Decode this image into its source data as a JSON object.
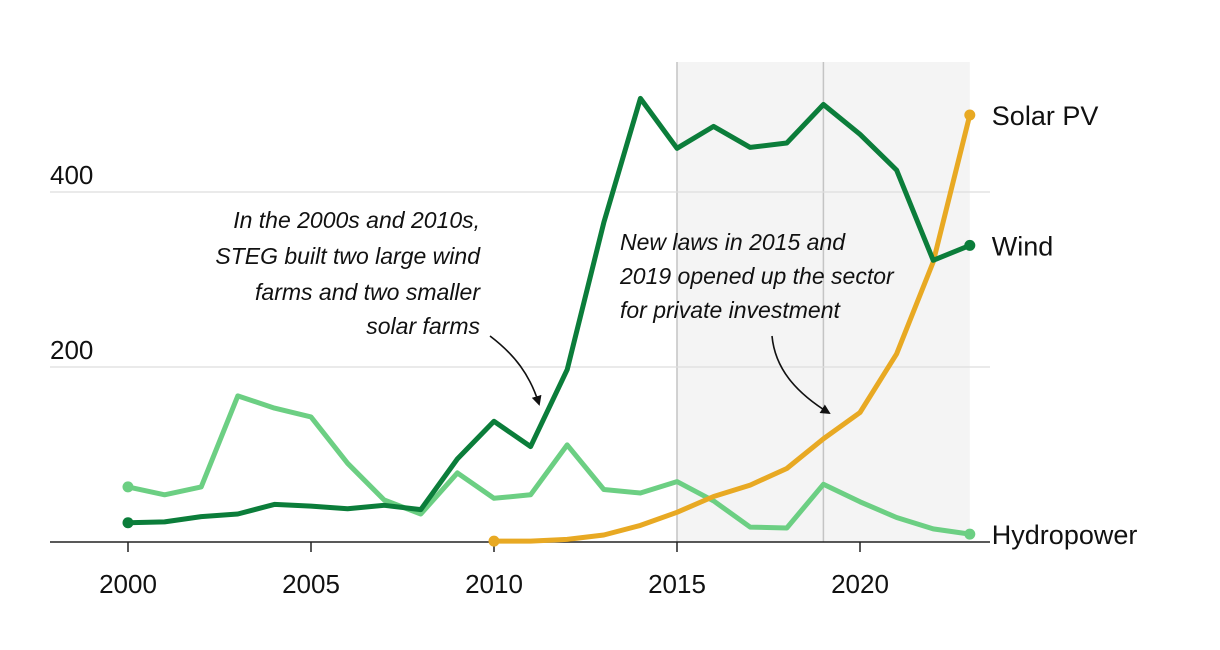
{
  "chart_data": {
    "type": "line",
    "title": "",
    "xlabel": "",
    "ylabel": "",
    "xlim": [
      1998,
      2027
    ],
    "ylim": [
      0,
      560
    ],
    "x_ticks": [
      2000,
      2005,
      2010,
      2015,
      2020
    ],
    "y_ticks": [
      200,
      400
    ],
    "x_tick_labels": [
      "2000",
      "2005",
      "2010",
      "2015",
      "2020"
    ],
    "y_tick_labels": [
      "200",
      "400"
    ],
    "grid": "horizontal",
    "shaded_period": [
      2015,
      2023
    ],
    "reference_years": [
      2015,
      2019
    ],
    "series": [
      {
        "name": "Solar PV",
        "color": "#e8a923",
        "x": [
          2010,
          2011,
          2012,
          2013,
          2014,
          2015,
          2016,
          2017,
          2018,
          2019,
          2020,
          2021,
          2022,
          2023
        ],
        "values": [
          1,
          1,
          3,
          8,
          19,
          34,
          52,
          65,
          84,
          118,
          148,
          215,
          320,
          488
        ]
      },
      {
        "name": "Wind",
        "color": "#0b7d3a",
        "x": [
          2000,
          2001,
          2002,
          2003,
          2004,
          2005,
          2006,
          2007,
          2008,
          2009,
          2010,
          2011,
          2012,
          2013,
          2014,
          2015,
          2016,
          2017,
          2018,
          2019,
          2020,
          2021,
          2022,
          2023
        ],
        "values": [
          22,
          23,
          29,
          32,
          43,
          41,
          38,
          42,
          37,
          95,
          138,
          109,
          197,
          365,
          507,
          450,
          475,
          451,
          456,
          500,
          466,
          425,
          322,
          339
        ]
      },
      {
        "name": "Hydropower",
        "color": "#6ccf83",
        "x": [
          2000,
          2001,
          2002,
          2003,
          2004,
          2005,
          2006,
          2007,
          2008,
          2009,
          2010,
          2011,
          2012,
          2013,
          2014,
          2015,
          2016,
          2017,
          2018,
          2019,
          2020,
          2021,
          2022,
          2023
        ],
        "values": [
          63,
          54,
          63,
          167,
          153,
          143,
          90,
          48,
          32,
          79,
          50,
          54,
          111,
          60,
          56,
          69,
          47,
          17,
          16,
          66,
          46,
          28,
          15,
          9
        ]
      }
    ],
    "annotations": [
      {
        "lines": [
          "In the 2000s and 2010s,",
          "STEG built two large wind",
          "farms and two smaller",
          "solar farms"
        ]
      },
      {
        "lines": [
          "New laws in 2015 and",
          "2019 opened up the sector",
          "for private investment"
        ]
      }
    ]
  }
}
